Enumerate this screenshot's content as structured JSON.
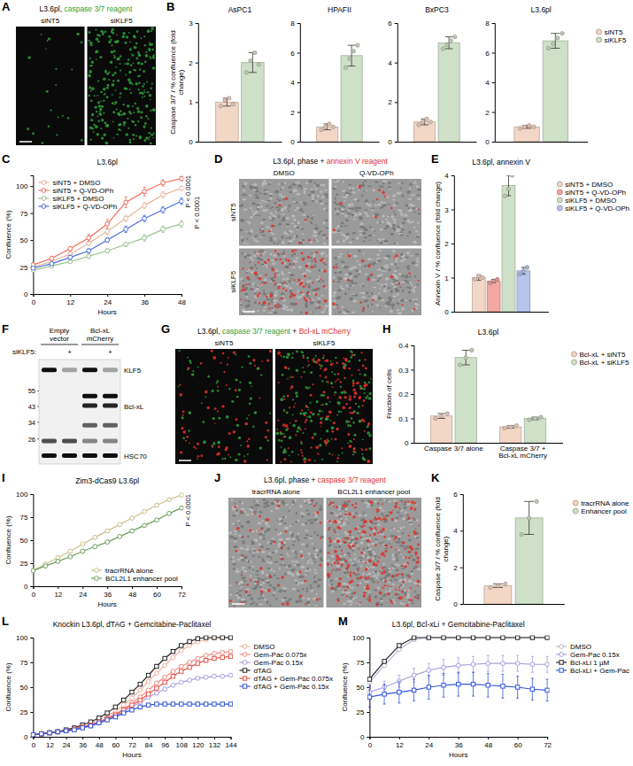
{
  "chart_data": [
    {
      "type": "bar",
      "panel": "B",
      "title": "AsPC1",
      "y_label": "Caspase 3/7 / % confluence (fold change)",
      "categories": [
        null
      ],
      "tick_labels": "y",
      "ylim": [
        0,
        3
      ],
      "yticks": [
        0,
        1,
        2,
        3
      ],
      "series": [
        {
          "color": "#f2d6c6",
          "values": [
            1.0
          ],
          "error": [
            0.1
          ],
          "points": [
            [
              0.9,
              1.05,
              1.1,
              0.95
            ]
          ]
        },
        {
          "color": "#cfe0c8",
          "values": [
            2.0
          ],
          "error": [
            0.25
          ],
          "points": [
            [
              1.75,
              2.05,
              2.25,
              1.95
            ]
          ]
        }
      ]
    },
    {
      "type": "bar",
      "title": "HPAFII",
      "categories": [
        null
      ],
      "tick_labels": "y",
      "ylim": [
        0,
        8
      ],
      "yticks": [
        0,
        2,
        4,
        6,
        8
      ],
      "series": [
        {
          "color": "#f2d6c6",
          "values": [
            1.0
          ],
          "error": [
            0.2
          ],
          "points": [
            [
              0.8,
              1.0,
              1.2,
              1.0
            ]
          ]
        },
        {
          "color": "#cfe0c8",
          "values": [
            5.8
          ],
          "error": [
            0.7
          ],
          "points": [
            [
              5.0,
              5.6,
              6.1,
              6.5
            ]
          ]
        }
      ]
    },
    {
      "type": "bar",
      "title": "BxPC3",
      "categories": [
        null
      ],
      "tick_labels": "y",
      "ylim": [
        0,
        6
      ],
      "yticks": [
        0,
        2,
        4,
        6
      ],
      "series": [
        {
          "color": "#f2d6c6",
          "values": [
            1.0
          ],
          "error": [
            0.15
          ],
          "points": [
            [
              0.85,
              1.0,
              1.15,
              1.0
            ]
          ]
        },
        {
          "color": "#cfe0c8",
          "values": [
            5.0
          ],
          "error": [
            0.3
          ],
          "points": [
            [
              4.7,
              4.9,
              5.1,
              5.3
            ]
          ]
        }
      ]
    },
    {
      "type": "bar",
      "title": "L3.6pl",
      "categories": [
        null
      ],
      "tick_labels": "y",
      "ylim": [
        0,
        8
      ],
      "yticks": [
        0,
        2,
        4,
        6,
        8
      ],
      "legend": "right",
      "series": [
        {
          "name": "siNT5",
          "color": "#f2d6c6",
          "values": [
            1.0
          ],
          "error": [
            0.1
          ],
          "points": [
            [
              0.9,
              1.0,
              1.1,
              1.0
            ]
          ]
        },
        {
          "name": "siKLF5",
          "color": "#cfe0c8",
          "values": [
            6.8
          ],
          "error": [
            0.5
          ],
          "points": [
            [
              6.3,
              6.6,
              7.0,
              7.3
            ]
          ]
        }
      ]
    },
    {
      "type": "line",
      "panel": "C",
      "title": "L3.6pl",
      "x_label": "Hours",
      "y_label": "Confluence (%)",
      "x": [
        0,
        6,
        12,
        18,
        24,
        30,
        36,
        42,
        48
      ],
      "xlim": [
        0,
        48
      ],
      "xticks": [
        0,
        12,
        24,
        36,
        48
      ],
      "ylim": [
        0,
        110
      ],
      "yticks": [
        0,
        25,
        50,
        75,
        100
      ],
      "legend": "top-left",
      "annotations": [
        "P < 0.0001",
        "P < 0.0001"
      ],
      "series": [
        {
          "name": "siNT5 + DMSO",
          "color": "#e8b49a",
          "marker": "circle",
          "values": [
            25,
            30,
            37,
            47,
            58,
            70,
            82,
            92,
            98
          ],
          "error": [
            1,
            1,
            2,
            2,
            3,
            3,
            3,
            3,
            2
          ]
        },
        {
          "name": "siNT5 + Q-VD-OPh",
          "color": "#ef6a5a",
          "marker": "circle",
          "values": [
            27,
            33,
            42,
            52,
            65,
            85,
            95,
            103,
            107
          ],
          "error": [
            1,
            2,
            2,
            3,
            4,
            5,
            4,
            3,
            2
          ]
        },
        {
          "name": "siKLF5 + DMSO",
          "color": "#9cc08f",
          "marker": "circle",
          "values": [
            22,
            26,
            30,
            35,
            40,
            46,
            52,
            60,
            65
          ],
          "error": [
            1,
            1,
            1,
            2,
            2,
            2,
            3,
            3,
            3
          ]
        },
        {
          "name": "siKLF5 + Q-VD-OPh",
          "color": "#4a6fe0",
          "marker": "circle",
          "values": [
            24,
            28,
            34,
            40,
            50,
            60,
            70,
            78,
            86
          ],
          "error": [
            1,
            1,
            2,
            2,
            2,
            3,
            3,
            3,
            3
          ]
        }
      ]
    },
    {
      "type": "bar",
      "panel": "E",
      "title": "L3.6pl, annexin V",
      "y_label": "Annexin V / % confluence (fold change)",
      "categories": [
        null
      ],
      "tick_labels": "y",
      "ylim": [
        0,
        4
      ],
      "yticks": [
        0,
        1,
        2,
        3,
        4
      ],
      "legend": "right",
      "series": [
        {
          "name": "siNT5 + DMSO",
          "color": "#f2d6c6",
          "values": [
            1.0
          ],
          "error": [
            0.08
          ],
          "points": [
            [
              0.95,
              1.05,
              1.0
            ]
          ]
        },
        {
          "name": "siNT5 + Q-VD-OPh",
          "color": "#f2a7a2",
          "values": [
            0.9
          ],
          "error": [
            0.05
          ],
          "points": [
            [
              0.85,
              0.9,
              0.95
            ]
          ]
        },
        {
          "name": "siKLF5 + DMSO",
          "color": "#cfe0c8",
          "values": [
            3.7
          ],
          "error": [
            0.3
          ],
          "points": [
            [
              3.4,
              3.6,
              4.0
            ]
          ]
        },
        {
          "name": "siKLF5 + Q-VD-OPh",
          "color": "#b8c4ee",
          "values": [
            1.2
          ],
          "error": [
            0.1
          ],
          "points": [
            [
              1.1,
              1.2,
              1.3
            ]
          ]
        }
      ]
    },
    {
      "type": "bar",
      "panel": "H",
      "title": "L3.6pl",
      "y_label": "Fraction of cells",
      "categories": [
        "Caspase 3/7 alone",
        "Caspase 3/7 + Bcl-xL mCherry"
      ],
      "ylim": [
        0,
        0.4
      ],
      "yticks": [
        0,
        0.1,
        0.2,
        0.3,
        0.4
      ],
      "legend": "right",
      "series": [
        {
          "name": "Bcl-xL + siNT5",
          "color": "#f2d6c6",
          "values": [
            0.11,
            0.065
          ],
          "error": [
            0.01,
            0.005
          ],
          "points": [
            [
              0.1,
              0.11,
              0.12
            ],
            [
              0.06,
              0.065,
              0.07
            ]
          ]
        },
        {
          "name": "Bcl-xL + siKLF5",
          "color": "#cfe0c8",
          "values": [
            0.35,
            0.1
          ],
          "error": [
            0.03,
            0.005
          ],
          "points": [
            [
              0.32,
              0.35,
              0.38
            ],
            [
              0.095,
              0.1,
              0.105
            ]
          ]
        }
      ]
    },
    {
      "type": "line",
      "panel": "I",
      "title": "Zim3-dCas9 L3.6pl",
      "x_label": "Hours",
      "y_label": "Confluence (%)",
      "x": [
        0,
        6,
        12,
        18,
        24,
        30,
        36,
        42,
        48,
        54,
        60,
        66,
        72
      ],
      "xlim": [
        0,
        72
      ],
      "xticks": [
        0,
        12,
        24,
        36,
        48,
        60,
        72
      ],
      "ylim": [
        0,
        100
      ],
      "yticks": [
        0,
        25,
        50,
        75,
        100
      ],
      "legend": "bottom-right",
      "annotations": [
        "P < 0.0001"
      ],
      "series": [
        {
          "name": "tracrRNA alone",
          "color": "#c9bd8a",
          "marker": "circle",
          "values": [
            17,
            24,
            31,
            38,
            46,
            53,
            60,
            67,
            74,
            81,
            88,
            94,
            99
          ]
        },
        {
          "name": "BCL2L1 enhancer pool",
          "color": "#6e9e5e",
          "marker": "circle",
          "values": [
            17,
            22,
            27,
            32,
            38,
            43,
            48,
            54,
            60,
            66,
            72,
            79,
            85
          ]
        }
      ]
    },
    {
      "type": "bar",
      "panel": "K",
      "y_label": "Caspase 3/7 / % confluence (fold change)",
      "categories": [
        null
      ],
      "tick_labels": "y",
      "ylim": [
        0,
        6
      ],
      "yticks": [
        0,
        2,
        4,
        6
      ],
      "legend": "right",
      "series": [
        {
          "name": "tracrRNA alone",
          "color": "#f2d6c6",
          "values": [
            1.0
          ],
          "error": [
            0.1
          ],
          "points": [
            [
              0.9,
              1.0,
              1.1
            ]
          ]
        },
        {
          "name": "Enhancer pool",
          "color": "#cfe0c8",
          "values": [
            4.7
          ],
          "error": [
            0.9
          ],
          "points": [
            [
              3.8,
              4.7,
              5.6
            ]
          ]
        }
      ]
    },
    {
      "type": "line",
      "panel": "L",
      "title": "Knockin L3.6pl, dTAG + Gemcitabine-Paclitaxel",
      "x_label": "Hours",
      "y_label": "Confluence (%)",
      "x": [
        0,
        6,
        12,
        18,
        24,
        30,
        36,
        42,
        48,
        54,
        60,
        66,
        72,
        78,
        84,
        90,
        96,
        102,
        108,
        114,
        120,
        126,
        132,
        138,
        144
      ],
      "xlim": [
        0,
        144
      ],
      "xticks": [
        0,
        12,
        24,
        36,
        48,
        60,
        72,
        84,
        96,
        108,
        120,
        132,
        144
      ],
      "ylim": [
        0,
        100
      ],
      "yticks": [
        0,
        25,
        50,
        75,
        100
      ],
      "legend": "right",
      "series": [
        {
          "name": "DMSO",
          "color": "#f0b49a",
          "marker": "circle",
          "values": [
            2,
            3,
            4,
            5,
            6,
            8,
            10,
            13,
            17,
            21,
            26,
            32,
            39,
            47,
            56,
            64,
            72,
            80,
            87,
            92,
            96,
            98,
            100,
            100,
            100
          ]
        },
        {
          "name": "Gem-Pac 0.075x",
          "color": "#f08c84",
          "marker": "circle",
          "values": [
            2,
            3,
            4,
            5,
            6,
            8,
            10,
            12,
            15,
            19,
            23,
            28,
            34,
            40,
            47,
            54,
            60,
            66,
            71,
            75,
            79,
            82,
            84,
            85,
            86
          ]
        },
        {
          "name": "Gem-Pac 0.15x",
          "color": "#a89ee0",
          "marker": "circle",
          "values": [
            2,
            3,
            4,
            5,
            6,
            7,
            9,
            11,
            14,
            17,
            21,
            25,
            30,
            35,
            40,
            44,
            48,
            52,
            55,
            57,
            59,
            60,
            61,
            61,
            62
          ]
        },
        {
          "name": "dTAG",
          "color": "#222222",
          "marker": "square",
          "values": [
            2,
            3,
            4,
            5,
            7,
            9,
            12,
            15,
            19,
            24,
            30,
            37,
            45,
            53,
            62,
            71,
            79,
            86,
            92,
            96,
            99,
            100,
            100,
            100,
            100
          ]
        },
        {
          "name": "dTAG + Gem-Pac 0.075x",
          "color": "#e8544a",
          "marker": "square",
          "values": [
            2,
            3,
            4,
            5,
            6,
            8,
            10,
            12,
            15,
            18,
            22,
            27,
            32,
            37,
            43,
            49,
            55,
            61,
            66,
            70,
            74,
            77,
            79,
            80,
            81
          ]
        },
        {
          "name": "dTAG + Gem-Pac 0.15x",
          "color": "#3356e0",
          "marker": "square",
          "values": [
            2,
            3,
            4,
            5,
            6,
            7,
            9,
            11,
            14,
            17,
            20,
            24,
            27,
            30,
            32,
            33,
            33,
            33,
            33,
            33,
            33,
            33,
            33,
            33,
            33
          ]
        }
      ]
    },
    {
      "type": "line",
      "panel": "M",
      "title": "L3.6pl, Bcl-xLi + Gemcitabine-Paclitaxel",
      "x_label": "Hours",
      "y_label": "Confluence (%)",
      "x": [
        0,
        6,
        12,
        18,
        24,
        30,
        36,
        42,
        48,
        54,
        60,
        66,
        72
      ],
      "xlim": [
        0,
        72
      ],
      "xticks": [
        0,
        12,
        24,
        36,
        48,
        60,
        72
      ],
      "ylim": [
        0,
        100
      ],
      "yticks": [
        0,
        25,
        50,
        75,
        100
      ],
      "legend": "right",
      "series": [
        {
          "name": "DMSO",
          "color": "#bfb2d2",
          "marker": "circle",
          "values": [
            55,
            72,
            88,
            98,
            100,
            100,
            100,
            100,
            100,
            100,
            100,
            100,
            100
          ]
        },
        {
          "name": "Gem-Pac 0.15x",
          "color": "#a89ee0",
          "marker": "circle",
          "values": [
            45,
            50,
            56,
            62,
            67,
            70,
            72,
            73,
            74,
            74,
            74,
            73,
            73
          ],
          "error": [
            5,
            6,
            6,
            7,
            7,
            8,
            8,
            8,
            8,
            8,
            8,
            8,
            8
          ]
        },
        {
          "name": "Bcl-xLi 1 µM",
          "color": "#222222",
          "marker": "square",
          "values": [
            58,
            76,
            92,
            100,
            100,
            100,
            100,
            100,
            100,
            100,
            100,
            100,
            100
          ]
        },
        {
          "name": "Bcl-xLi + Gem-Pac",
          "color": "#3356e0",
          "marker": "square",
          "values": [
            40,
            43,
            45,
            47,
            50,
            52,
            53,
            53,
            52,
            51,
            50,
            48,
            47
          ],
          "error": [
            10,
            10,
            11,
            11,
            12,
            12,
            12,
            12,
            12,
            12,
            11,
            11,
            11
          ]
        }
      ]
    }
  ],
  "images": [
    {
      "panel": "A",
      "title": [
        "L3.6pl, ",
        "caspase 3/7 reagent"
      ],
      "colors": [
        null,
        "#2e9e3a"
      ],
      "columns": [
        "siNT5",
        "siKLF5"
      ]
    },
    {
      "panel": "D",
      "title": [
        "L3.6pl, phase + ",
        "annexin V reagent"
      ],
      "colors": [
        null,
        "#e0302a"
      ],
      "columns": [
        "DMSO",
        "Q-VD-OPh"
      ],
      "rows": [
        "siNT5",
        "siKLF5"
      ]
    },
    {
      "panel": "G",
      "title": [
        "L3.6pl, ",
        "caspase 3/7 reagent",
        " + ",
        "Bcl-xL mCherry"
      ],
      "colors": [
        null,
        "#2e9e3a",
        null,
        "#e0302a"
      ],
      "columns": [
        "siNT5",
        "siKLF5"
      ]
    },
    {
      "panel": "J",
      "title": [
        "L3.6pl, phase + ",
        "caspase 3/7 reagent"
      ],
      "colors": [
        null,
        "#e0302a"
      ],
      "columns": [
        "tracrRNA alone",
        "BCL2L1 enhancer pool"
      ]
    }
  ],
  "blot": {
    "panel": "F",
    "columns": [
      "Empty vector",
      "Bcl-xL mCherry"
    ],
    "row_label": "siKLF5:",
    "lanes": [
      null,
      "+",
      null,
      "+"
    ],
    "ladder": [
      55,
      43,
      34,
      26
    ],
    "bands": [
      "KLF5",
      "Bcl-xL",
      "HSC70"
    ]
  }
}
